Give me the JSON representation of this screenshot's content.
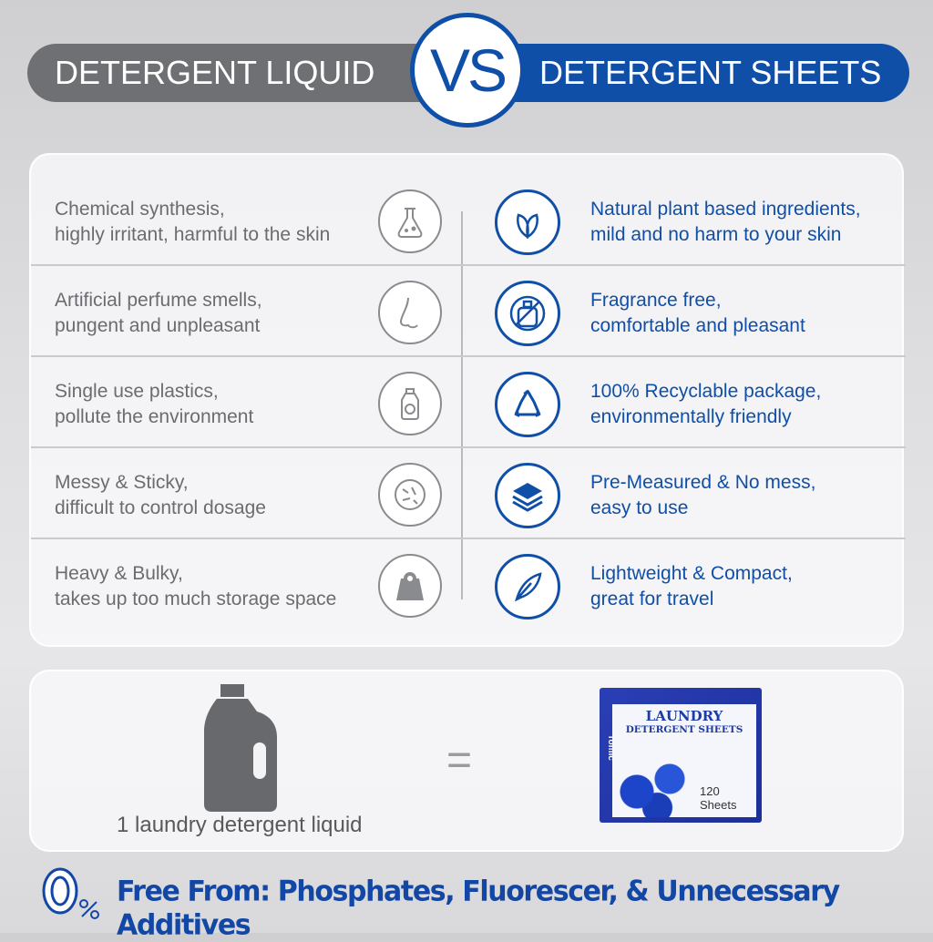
{
  "header": {
    "left_label": "DETERGENT LIQUID",
    "vs_label": "VS",
    "right_label": "DETERGENT SHEETS",
    "colors": {
      "gray": "#6f7073",
      "blue": "#0f4fa8"
    }
  },
  "rows": [
    {
      "left": [
        "Chemical synthesis,",
        "highly irritant, harmful to the skin"
      ],
      "left_icon": "flask-icon",
      "right_icon": "leaf-icon",
      "right": [
        "Natural plant based ingredients,",
        "mild and no harm to your skin"
      ]
    },
    {
      "left": [
        "Artificial perfume smells,",
        "pungent and unpleasant"
      ],
      "left_icon": "nose-icon",
      "right_icon": "no-perfume-icon",
      "right": [
        "Fragrance free,",
        "comfortable and pleasant"
      ]
    },
    {
      "left": [
        "Single use plastics,",
        "pollute the environment"
      ],
      "left_icon": "plastic-bottle-icon",
      "right_icon": "recycle-icon",
      "right": [
        "100% Recyclable package,",
        "environmentally friendly"
      ]
    },
    {
      "left": [
        "Messy & Sticky,",
        "difficult to control dosage"
      ],
      "left_icon": "bacteria-icon",
      "right_icon": "layers-icon",
      "right": [
        "Pre-Measured & No mess,",
        "easy to use"
      ]
    },
    {
      "left": [
        "Heavy & Bulky,",
        "takes up too much storage space"
      ],
      "left_icon": "weight-icon",
      "right_icon": "feather-icon",
      "right": [
        "Lightweight & Compact,",
        "great for travel"
      ]
    }
  ],
  "comparison": {
    "left_label": "1 laundry detergent liquid",
    "equals": "=",
    "product": {
      "brand": "Tomic",
      "title": "LAUNDRY",
      "subtitle": "DETERGENT SHEETS",
      "count": "120 Sheets"
    }
  },
  "footer": {
    "badge": "0%",
    "text": "Free From: Phosphates, Fluorescer, & Unnecessary Additives"
  }
}
